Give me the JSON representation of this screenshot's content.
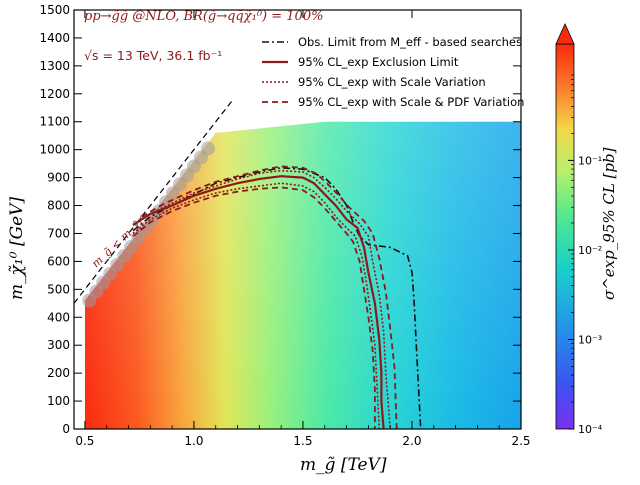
{
  "chart_data": {
    "type": "heatmap",
    "title": "pp→g̃g̃ @NLO, BR(g̃→qq̄χ̃₁⁰) = 100%",
    "energy_lumi": "√s = 13 TeV, 36.1 fb⁻¹",
    "xlabel": "m_g̃ [TeV]",
    "ylabel": "m_χ̃₁⁰ [GeV]",
    "colorbar_label": "σ^exp_95% CL [pb]",
    "diagonal_label": "m_g̃ < m_χ̃₁⁰",
    "xlim": [
      0.45,
      2.5
    ],
    "ylim": [
      0,
      1500
    ],
    "xticks": [
      "0.5",
      "1.0",
      "1.5",
      "2.0",
      "2.5"
    ],
    "yticks": [
      "0",
      "100",
      "200",
      "300",
      "400",
      "500",
      "600",
      "700",
      "800",
      "900",
      "1000",
      "1100",
      "1200",
      "1300",
      "1400",
      "1500"
    ],
    "colorbar_ticks": [
      "10⁻⁴",
      "10⁻³",
      "10⁻²",
      "10⁻¹"
    ],
    "colorbar_range_log10": [
      -4,
      0.3
    ],
    "heatmap_region": {
      "x": [
        0.5,
        2.5
      ],
      "y": [
        0,
        1100
      ]
    },
    "color_scale": "rainbow",
    "grid": false,
    "legend_position": "top-right",
    "legend": [
      {
        "label": "Obs. Limit from M_eff - based searches",
        "style": "dashdot",
        "color": "#000000"
      },
      {
        "label": "95% CL_exp Exclusion Limit",
        "style": "solid",
        "color": "#8b1a1a"
      },
      {
        "label": "95% CL_exp with Scale Variation",
        "style": "dotted",
        "color": "#8b1a1a"
      },
      {
        "label": "95% CL_exp with Scale & PDF Variation",
        "style": "dashed",
        "color": "#8b1a1a"
      }
    ],
    "series": [
      {
        "name": "Obs. Limit from M_eff - based searches",
        "points": [
          [
            0.72,
            710
          ],
          [
            0.8,
            760
          ],
          [
            0.9,
            800
          ],
          [
            1.0,
            840
          ],
          [
            1.1,
            880
          ],
          [
            1.2,
            900
          ],
          [
            1.3,
            920
          ],
          [
            1.4,
            935
          ],
          [
            1.5,
            930
          ],
          [
            1.6,
            900
          ],
          [
            1.65,
            860
          ],
          [
            1.7,
            800
          ],
          [
            1.73,
            740
          ],
          [
            1.76,
            690
          ],
          [
            1.8,
            660
          ],
          [
            1.9,
            650
          ],
          [
            1.98,
            620
          ],
          [
            2.0,
            560
          ],
          [
            2.01,
            450
          ],
          [
            2.02,
            300
          ],
          [
            2.03,
            150
          ],
          [
            2.04,
            0
          ]
        ]
      },
      {
        "name": "95% CL_exp Exclusion Limit",
        "points": [
          [
            0.72,
            730
          ],
          [
            0.8,
            770
          ],
          [
            0.9,
            800
          ],
          [
            1.0,
            835
          ],
          [
            1.1,
            860
          ],
          [
            1.2,
            880
          ],
          [
            1.3,
            895
          ],
          [
            1.4,
            905
          ],
          [
            1.5,
            900
          ],
          [
            1.55,
            880
          ],
          [
            1.6,
            840
          ],
          [
            1.65,
            800
          ],
          [
            1.7,
            750
          ],
          [
            1.75,
            720
          ],
          [
            1.78,
            650
          ],
          [
            1.8,
            560
          ],
          [
            1.83,
            450
          ],
          [
            1.85,
            320
          ],
          [
            1.86,
            200
          ],
          [
            1.86,
            100
          ],
          [
            1.87,
            0
          ]
        ]
      },
      {
        "name": "95% CL_exp with Scale Variation",
        "points": [
          [
            0.72,
            700
          ],
          [
            0.8,
            750
          ],
          [
            0.9,
            790
          ],
          [
            1.0,
            820
          ],
          [
            1.1,
            845
          ],
          [
            1.2,
            860
          ],
          [
            1.3,
            870
          ],
          [
            1.4,
            880
          ],
          [
            1.5,
            870
          ],
          [
            1.55,
            850
          ],
          [
            1.6,
            810
          ],
          [
            1.65,
            760
          ],
          [
            1.7,
            720
          ],
          [
            1.74,
            690
          ],
          [
            1.77,
            620
          ],
          [
            1.79,
            530
          ],
          [
            1.81,
            420
          ],
          [
            1.83,
            300
          ],
          [
            1.84,
            150
          ],
          [
            1.85,
            0
          ]
        ],
        "upper_points": [
          [
            0.75,
            750
          ],
          [
            0.85,
            790
          ],
          [
            1.0,
            845
          ],
          [
            1.1,
            870
          ],
          [
            1.2,
            895
          ],
          [
            1.3,
            915
          ],
          [
            1.4,
            925
          ],
          [
            1.5,
            920
          ],
          [
            1.55,
            900
          ],
          [
            1.6,
            865
          ],
          [
            1.65,
            825
          ],
          [
            1.7,
            780
          ],
          [
            1.76,
            735
          ],
          [
            1.8,
            690
          ],
          [
            1.82,
            600
          ],
          [
            1.85,
            480
          ],
          [
            1.87,
            350
          ],
          [
            1.88,
            200
          ],
          [
            1.9,
            0
          ]
        ]
      },
      {
        "name": "95% CL_exp with Scale & PDF Variation",
        "points": [
          [
            0.72,
            690
          ],
          [
            0.8,
            740
          ],
          [
            0.9,
            780
          ],
          [
            1.0,
            810
          ],
          [
            1.1,
            835
          ],
          [
            1.2,
            850
          ],
          [
            1.3,
            860
          ],
          [
            1.4,
            865
          ],
          [
            1.5,
            855
          ],
          [
            1.55,
            830
          ],
          [
            1.6,
            790
          ],
          [
            1.65,
            745
          ],
          [
            1.7,
            700
          ],
          [
            1.73,
            670
          ],
          [
            1.76,
            600
          ],
          [
            1.78,
            500
          ],
          [
            1.8,
            400
          ],
          [
            1.82,
            280
          ],
          [
            1.83,
            140
          ],
          [
            1.83,
            0
          ]
        ],
        "upper_points": [
          [
            0.76,
            760
          ],
          [
            0.86,
            805
          ],
          [
            1.0,
            855
          ],
          [
            1.1,
            885
          ],
          [
            1.2,
            905
          ],
          [
            1.3,
            925
          ],
          [
            1.4,
            940
          ],
          [
            1.5,
            935
          ],
          [
            1.56,
            915
          ],
          [
            1.61,
            880
          ],
          [
            1.66,
            840
          ],
          [
            1.71,
            795
          ],
          [
            1.78,
            745
          ],
          [
            1.82,
            700
          ],
          [
            1.85,
            610
          ],
          [
            1.88,
            490
          ],
          [
            1.9,
            360
          ],
          [
            1.92,
            220
          ],
          [
            1.93,
            0
          ]
        ]
      }
    ]
  }
}
